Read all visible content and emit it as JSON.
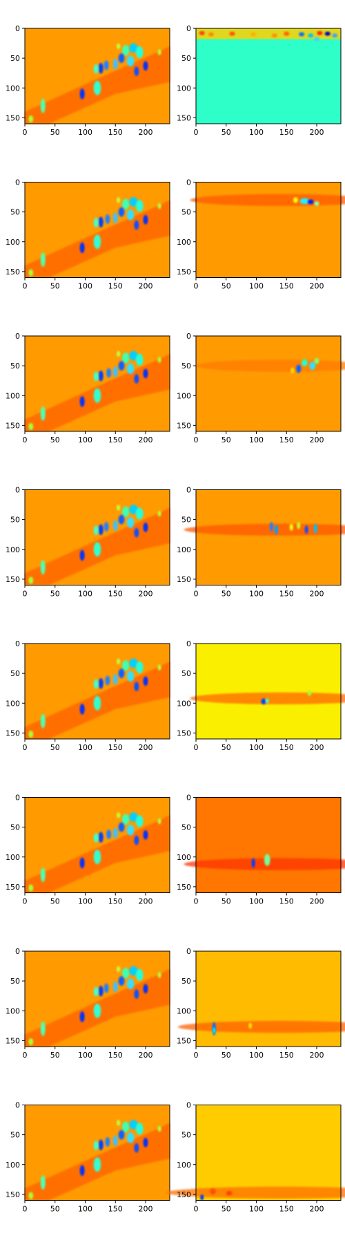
{
  "figure": {
    "colors": {
      "background": "#ffffff",
      "axis": "#000000"
    },
    "colormap": "jet",
    "rows": 8,
    "cols": 2
  },
  "chart_data": [
    {
      "type": "heatmap",
      "title": "",
      "colormap": "jet",
      "image_shape": [
        160,
        240
      ],
      "x_ticks": [
        0,
        50,
        100,
        150,
        200
      ],
      "y_ticks": [
        0,
        50,
        100,
        150
      ],
      "x_tick_labels": [
        "0",
        "50",
        "100",
        "150",
        "200"
      ],
      "y_tick_labels": [
        "0",
        "50",
        "100",
        "150"
      ],
      "panels": [
        {
          "row": 1,
          "left": {
            "background": "orange",
            "note_colors": [
              "#ff8c00",
              "#ff5500",
              "#00ffff",
              "#0000cc",
              "#aaff00"
            ]
          },
          "right": {
            "background": "cyan",
            "note_colors": [
              "#33ffcc",
              "#ff8800",
              "#0033ff"
            ]
          }
        },
        {
          "row": 2,
          "left": {
            "background": "orange"
          },
          "right": {
            "background": "orange"
          }
        },
        {
          "row": 3,
          "left": {
            "background": "orange"
          },
          "right": {
            "background": "orange"
          }
        },
        {
          "row": 4,
          "left": {
            "background": "orange"
          },
          "right": {
            "background": "orange"
          }
        },
        {
          "row": 5,
          "left": {
            "background": "orange"
          },
          "right": {
            "background": "yellow"
          }
        },
        {
          "row": 6,
          "left": {
            "background": "orange"
          },
          "right": {
            "background": "dark-orange"
          }
        },
        {
          "row": 7,
          "left": {
            "background": "orange"
          },
          "right": {
            "background": "amber"
          }
        },
        {
          "row": 8,
          "left": {
            "background": "orange"
          },
          "right": {
            "background": "gold"
          }
        }
      ]
    }
  ]
}
